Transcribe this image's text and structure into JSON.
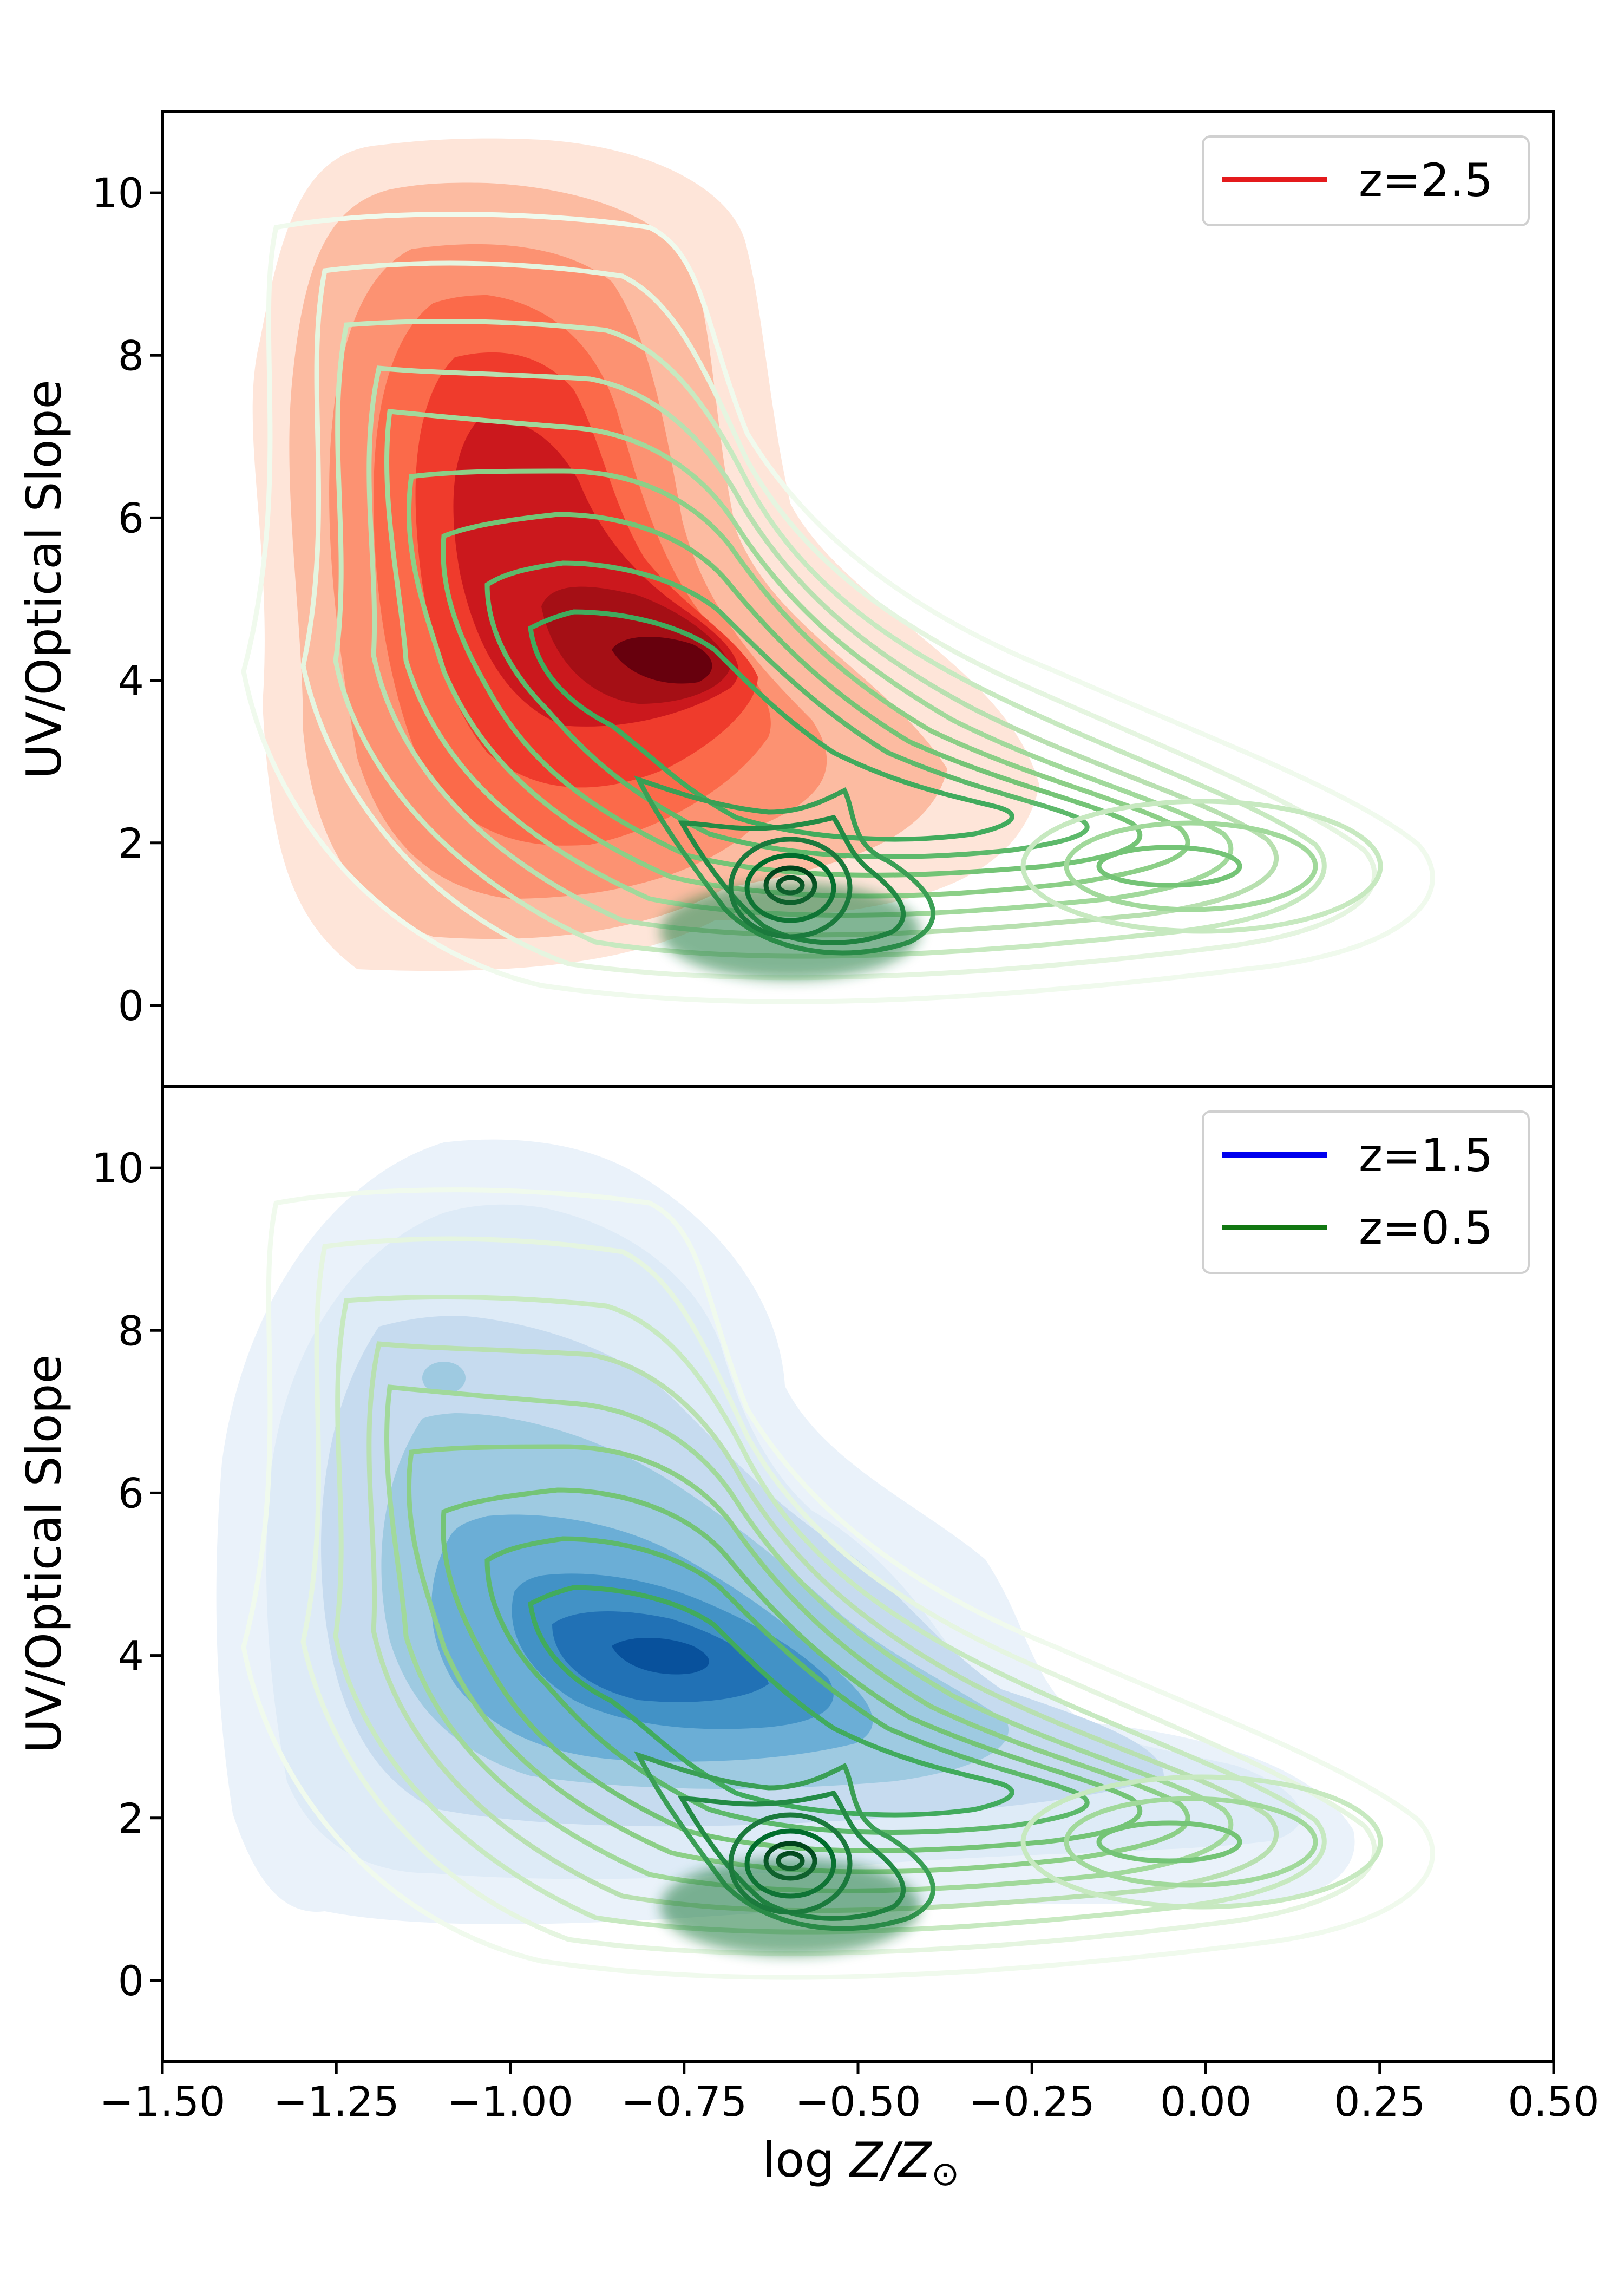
{
  "figure": {
    "xlabel": "log Z/Z⊙",
    "xlabel_main": "log ",
    "xlabel_math": "Z/Z",
    "xlabel_sun": "⊙",
    "shared_xlim": [
      -1.5,
      0.5
    ],
    "xticks": [
      -1.5,
      -1.25,
      -1.0,
      -0.75,
      -0.5,
      -0.25,
      0.0,
      0.25,
      0.5
    ],
    "xtick_labels": [
      "−1.50",
      "−1.25",
      "−1.00",
      "−0.75",
      "−0.50",
      "−0.25",
      "0.00",
      "0.25",
      "0.50"
    ]
  },
  "chart_data": [
    {
      "type": "kde-contour",
      "panel": "top",
      "ylabel": "UV/Optical Slope",
      "xlim": [
        -1.5,
        0.5
      ],
      "ylim": [
        -1,
        11
      ],
      "yticks": [
        0,
        2,
        4,
        6,
        8,
        10
      ],
      "ytick_labels": [
        "0",
        "2",
        "4",
        "6",
        "8",
        "10"
      ],
      "legend": [
        {
          "label": "z=2.5",
          "color": "#e41a1c"
        }
      ],
      "legend_position": "top-right",
      "filled_density": {
        "name": "z=2.5",
        "cmap": "Reds",
        "peak": {
          "x": -0.77,
          "y": 3.8
        },
        "secondary_peak": {
          "x": -0.95,
          "y": 6.8
        }
      },
      "line_density": {
        "name": "z=0.5",
        "cmap": "Greens",
        "peak": {
          "x": -0.6,
          "y": 1.5
        },
        "secondary_peak": {
          "x": -0.75,
          "y": 3.9
        }
      }
    },
    {
      "type": "kde-contour",
      "panel": "bottom",
      "ylabel": "UV/Optical Slope",
      "xlim": [
        -1.5,
        0.5
      ],
      "ylim": [
        -1,
        11
      ],
      "yticks": [
        0,
        2,
        4,
        6,
        8,
        10
      ],
      "ytick_labels": [
        "0",
        "2",
        "4",
        "6",
        "8",
        "10"
      ],
      "legend": [
        {
          "label": "z=1.5",
          "color": "#0000ee"
        },
        {
          "label": "z=0.5",
          "color": "#117711"
        }
      ],
      "legend_position": "top-right",
      "filled_density": {
        "name": "z=1.5",
        "cmap": "Blues",
        "peak": {
          "x": -0.77,
          "y": 3.9
        },
        "secondary_peak": {
          "x": -1.1,
          "y": 7.6
        }
      },
      "line_density": {
        "name": "z=0.5",
        "cmap": "Greens",
        "peak": {
          "x": -0.6,
          "y": 1.5
        },
        "secondary_peak": {
          "x": -0.75,
          "y": 3.9
        }
      }
    }
  ]
}
